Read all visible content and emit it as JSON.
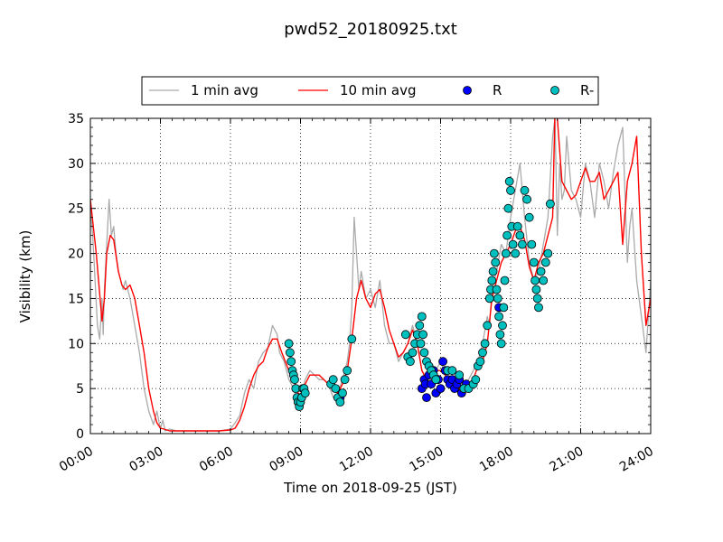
{
  "chart_data": {
    "type": "line",
    "title": "pwd52_20180925.txt",
    "xlabel": "Time on 2018-09-25 (JST)",
    "ylabel": "Visibility (km)",
    "xlim": [
      0,
      24
    ],
    "ylim": [
      0,
      35
    ],
    "x_ticks": [
      "00:00",
      "03:00",
      "06:00",
      "09:00",
      "12:00",
      "15:00",
      "18:00",
      "21:00",
      "24:00"
    ],
    "y_ticks": [
      "0",
      "5",
      "10",
      "15",
      "20",
      "25",
      "30",
      "35"
    ],
    "grid": true,
    "legend": {
      "position": "top",
      "entries": [
        {
          "label": "1 min avg",
          "color": "#aaaaaa",
          "marker": "line"
        },
        {
          "label": "10 min avg",
          "color": "#ff0000",
          "marker": "line"
        },
        {
          "label": "R",
          "color": "#0000ff",
          "marker": "circle"
        },
        {
          "label": "R-",
          "color": "#00bfbf",
          "marker": "circle"
        }
      ]
    },
    "series": [
      {
        "name": "10 min avg",
        "color": "#ff0000",
        "x": [
          0.0,
          0.25,
          0.5,
          0.6,
          0.7,
          0.85,
          1.0,
          1.2,
          1.35,
          1.5,
          1.7,
          1.9,
          2.1,
          2.3,
          2.5,
          2.7,
          2.85,
          3.0,
          3.15,
          3.4,
          3.7,
          4.0,
          4.5,
          5.0,
          5.5,
          6.0,
          6.2,
          6.4,
          6.6,
          6.8,
          7.0,
          7.2,
          7.4,
          7.6,
          7.8,
          8.0,
          8.2,
          8.5,
          8.7,
          8.9,
          9.0,
          9.2,
          9.4,
          9.6,
          9.8,
          10.0,
          10.2,
          10.4,
          10.6,
          10.8,
          11.0,
          11.2,
          11.4,
          11.6,
          11.8,
          12.0,
          12.2,
          12.4,
          12.6,
          12.8,
          13.0,
          13.2,
          13.4,
          13.6,
          13.8,
          14.0,
          14.2,
          14.4,
          14.6,
          14.8,
          15.0,
          15.2,
          15.4,
          15.6,
          15.8,
          16.0,
          16.2,
          16.4,
          16.6,
          16.8,
          17.0,
          17.2,
          17.4,
          17.6,
          17.8,
          18.0,
          18.2,
          18.4,
          18.6,
          18.8,
          19.0,
          19.2,
          19.4,
          19.6,
          19.8,
          19.9,
          20.0,
          20.2,
          20.4,
          20.6,
          20.8,
          21.0,
          21.2,
          21.4,
          21.6,
          21.8,
          22.0,
          22.2,
          22.4,
          22.6,
          22.8,
          23.0,
          23.2,
          23.4,
          23.6,
          23.8,
          24.0
        ],
        "y": [
          26,
          20,
          12.5,
          15,
          20,
          22,
          21.5,
          18,
          16.5,
          16,
          16.5,
          15,
          12,
          9,
          5,
          2.5,
          1.2,
          0.6,
          0.5,
          0.3,
          0.3,
          0.3,
          0.3,
          0.3,
          0.3,
          0.4,
          0.6,
          1.5,
          3,
          5,
          6.5,
          7.5,
          8,
          9.5,
          10.5,
          10.5,
          9,
          7,
          6,
          4.5,
          4,
          5.5,
          6.5,
          6.5,
          6.5,
          6,
          5.5,
          5,
          4.5,
          5.5,
          7,
          10.5,
          15,
          17,
          15,
          14,
          15.5,
          16,
          14,
          11.5,
          10,
          8.5,
          9,
          10,
          11.5,
          10,
          7,
          6,
          6.5,
          7,
          7,
          6.5,
          6,
          5.5,
          5,
          5,
          5.5,
          6,
          7.5,
          8,
          10,
          15,
          17,
          19,
          20,
          21,
          22.5,
          23,
          21.5,
          18.5,
          17,
          19,
          20,
          22,
          24,
          36,
          35,
          28,
          27,
          26,
          26.5,
          28,
          29.5,
          28,
          28,
          29,
          26,
          27,
          28,
          29,
          21,
          28,
          30,
          33,
          20,
          12,
          15
        ]
      },
      {
        "name": "1 min avg",
        "color": "#aaaaaa",
        "x": [
          0.0,
          0.1,
          0.2,
          0.3,
          0.4,
          0.5,
          0.55,
          0.6,
          0.7,
          0.8,
          0.9,
          1.0,
          1.1,
          1.2,
          1.3,
          1.4,
          1.5,
          1.7,
          1.9,
          2.1,
          2.3,
          2.5,
          2.7,
          2.85,
          3.0,
          3.1,
          3.2,
          3.4,
          3.7,
          4.0,
          4.5,
          5.0,
          5.5,
          6.0,
          6.2,
          6.4,
          6.6,
          6.8,
          7.0,
          7.2,
          7.4,
          7.6,
          7.8,
          8.0,
          8.1,
          8.3,
          8.5,
          8.7,
          8.9,
          9.0,
          9.2,
          9.4,
          9.6,
          9.8,
          10.0,
          10.2,
          10.4,
          10.6,
          10.8,
          11.0,
          11.1,
          11.2,
          11.3,
          11.4,
          11.5,
          11.6,
          11.8,
          12.0,
          12.2,
          12.4,
          12.6,
          12.8,
          13.0,
          13.2,
          13.4,
          13.6,
          13.8,
          14.0,
          14.2,
          14.4,
          14.6,
          14.8,
          15.0,
          15.2,
          15.4,
          15.6,
          15.8,
          16.0,
          16.2,
          16.4,
          16.6,
          16.8,
          17.0,
          17.1,
          17.2,
          17.4,
          17.6,
          17.8,
          18.0,
          18.2,
          18.4,
          18.6,
          18.8,
          19.0,
          19.2,
          19.4,
          19.6,
          19.8,
          19.9,
          20.0,
          20.1,
          20.2,
          20.3,
          20.4,
          20.6,
          20.8,
          21.0,
          21.2,
          21.4,
          21.6,
          21.8,
          22.0,
          22.2,
          22.4,
          22.6,
          22.8,
          23.0,
          23.1,
          23.2,
          23.4,
          23.6,
          23.8,
          24.0
        ],
        "y": [
          25,
          22,
          17,
          12,
          10.5,
          15,
          11,
          16,
          21,
          26,
          22,
          23,
          20,
          18,
          17,
          16,
          17,
          15,
          12,
          9,
          5,
          2.5,
          1,
          2.5,
          0.5,
          1.5,
          0.3,
          0.5,
          0.3,
          0.3,
          0.3,
          0.3,
          0.3,
          0.5,
          1.2,
          2,
          4.5,
          6,
          5,
          8,
          9,
          9.5,
          12,
          11,
          9,
          8,
          6,
          5,
          3.5,
          4,
          6,
          7,
          6.5,
          6,
          6,
          5.5,
          4,
          4.5,
          6,
          8,
          10,
          14,
          24,
          20,
          16,
          18,
          15,
          16,
          14,
          17,
          12,
          10,
          10,
          8,
          9,
          10,
          12,
          10,
          7,
          6,
          7,
          7,
          8,
          6.5,
          6,
          5,
          4.5,
          5,
          6,
          7,
          8,
          10,
          13,
          12,
          16,
          18,
          21,
          20,
          24,
          27,
          30,
          24,
          19,
          17,
          18,
          21,
          24,
          33,
          35,
          22,
          30,
          26,
          27,
          33,
          27,
          26,
          24,
          30,
          28,
          24,
          30,
          28,
          25,
          29,
          32,
          34,
          19,
          23,
          25,
          17,
          13,
          9,
          17
        ]
      },
      {
        "name": "R",
        "color": "#0000ff",
        "marker": "circle",
        "x": [
          8.9,
          9.0,
          10.7,
          14.2,
          14.3,
          14.35,
          14.4,
          14.5,
          14.6,
          14.7,
          14.8,
          14.9,
          15.0,
          15.1,
          15.2,
          15.3,
          15.4,
          15.5,
          15.6,
          15.7,
          15.8,
          15.9,
          16.0,
          16.1,
          17.5
        ],
        "y": [
          3.5,
          4,
          4,
          5,
          6,
          5.5,
          4,
          6.5,
          5.5,
          7,
          4.5,
          6,
          5,
          8,
          7,
          6,
          5.5,
          6,
          5,
          5.5,
          6,
          4.5,
          5,
          5.5,
          14
        ]
      },
      {
        "name": "R-",
        "color": "#00bfbf",
        "marker": "circle",
        "x": [
          8.5,
          8.55,
          8.6,
          8.65,
          8.7,
          8.75,
          8.8,
          8.85,
          8.9,
          8.95,
          9.0,
          9.05,
          9.1,
          9.15,
          9.2,
          10.3,
          10.4,
          10.5,
          10.6,
          10.7,
          10.8,
          10.9,
          11.0,
          11.2,
          13.5,
          13.6,
          13.7,
          13.8,
          13.9,
          14.0,
          14.1,
          14.15,
          14.2,
          14.25,
          14.3,
          14.4,
          14.5,
          14.6,
          14.7,
          14.8,
          15.3,
          15.5,
          15.8,
          16.0,
          16.2,
          16.4,
          16.5,
          16.6,
          16.7,
          16.8,
          16.9,
          17.0,
          17.1,
          17.15,
          17.2,
          17.25,
          17.3,
          17.35,
          17.4,
          17.45,
          17.5,
          17.55,
          17.6,
          17.65,
          17.7,
          17.75,
          17.8,
          17.85,
          17.9,
          17.95,
          18.0,
          18.05,
          18.1,
          18.2,
          18.3,
          18.4,
          18.5,
          18.6,
          18.7,
          18.8,
          18.9,
          19.0,
          19.05,
          19.1,
          19.15,
          19.2,
          19.3,
          19.4,
          19.5,
          19.6,
          19.7
        ],
        "y": [
          10,
          9,
          8,
          7,
          6.5,
          6,
          5,
          4,
          3.5,
          3,
          3.5,
          4,
          5,
          5,
          4.5,
          5.5,
          6,
          5,
          4,
          3.5,
          4.5,
          6,
          7,
          10.5,
          11,
          8.5,
          8,
          9,
          10,
          11,
          12,
          10,
          13,
          11,
          9,
          8,
          7.5,
          7,
          6.5,
          6,
          7,
          7,
          6.5,
          5,
          5,
          5.5,
          6,
          7.5,
          8,
          9,
          10,
          12,
          15,
          16,
          17,
          18,
          20,
          19,
          16,
          15,
          13,
          11,
          10,
          12,
          14,
          17,
          20,
          22,
          25,
          28,
          27,
          23,
          21,
          20,
          23,
          22,
          21,
          27,
          26,
          24,
          21,
          19,
          17,
          16,
          15,
          14,
          18,
          17,
          19,
          20,
          25.5
        ]
      }
    ]
  }
}
